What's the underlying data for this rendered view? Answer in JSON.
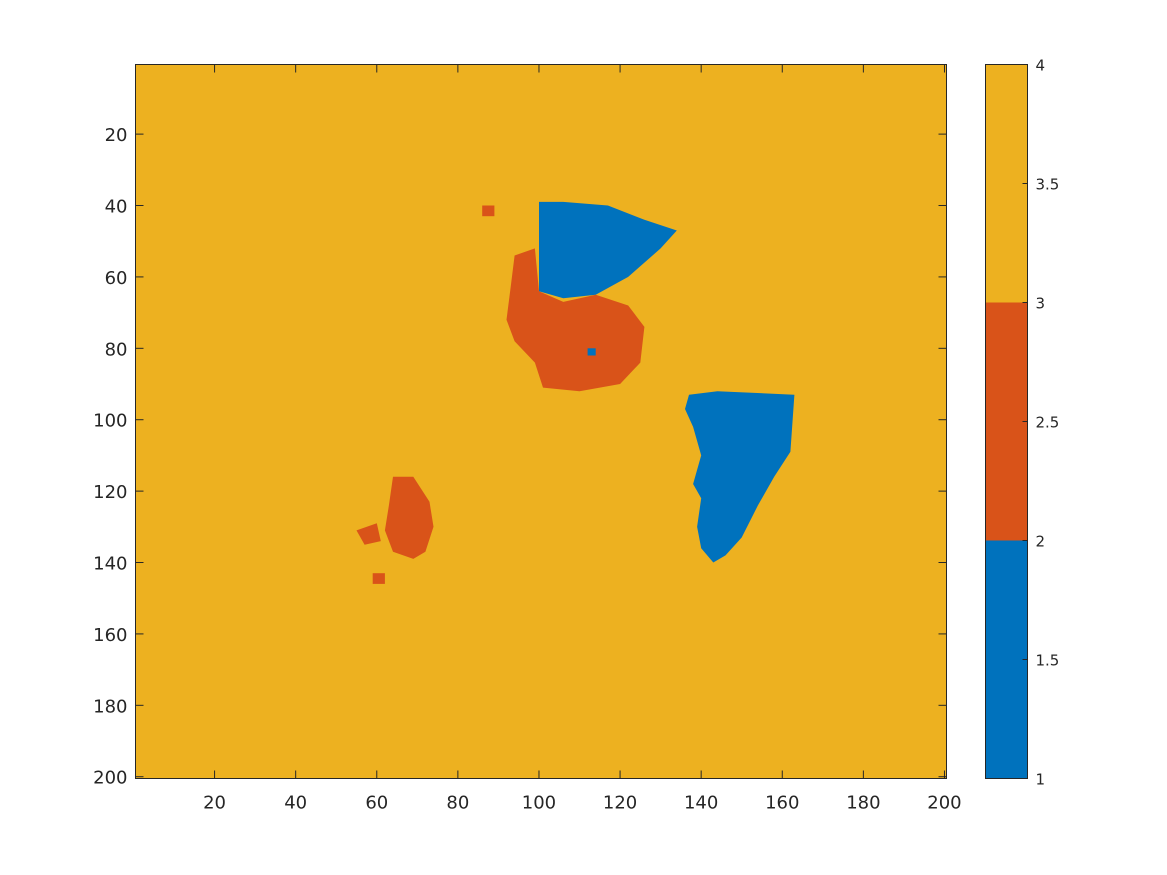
{
  "chart_data": {
    "type": "heatmap",
    "title": "",
    "xlabel": "",
    "ylabel": "",
    "xlim": [
      0.5,
      200.5
    ],
    "ylim": [
      0.5,
      200.5
    ],
    "y_reversed": true,
    "x_ticks": [
      20,
      40,
      60,
      80,
      100,
      120,
      140,
      160,
      180,
      200
    ],
    "y_ticks": [
      20,
      40,
      60,
      80,
      100,
      120,
      140,
      160,
      180,
      200
    ],
    "x_tick_labels": [
      "20",
      "40",
      "60",
      "80",
      "100",
      "120",
      "140",
      "160",
      "180",
      "200"
    ],
    "y_tick_labels": [
      "20",
      "40",
      "60",
      "80",
      "100",
      "120",
      "140",
      "160",
      "180",
      "200"
    ],
    "background_value": 4,
    "class_colors": {
      "1": "#0072BD",
      "3": "#D95319",
      "4": "#EDB120"
    },
    "regions": [
      {
        "value": 1,
        "approx_outline_xy": [
          [
            100,
            39
          ],
          [
            106,
            39
          ],
          [
            117,
            40
          ],
          [
            126,
            44
          ],
          [
            134,
            47
          ],
          [
            130,
            52
          ],
          [
            122,
            60
          ],
          [
            114,
            65
          ],
          [
            106,
            66
          ],
          [
            100,
            64
          ]
        ]
      },
      {
        "value": 3,
        "approx_outline_xy": [
          [
            94,
            54
          ],
          [
            99,
            52
          ],
          [
            100,
            64
          ],
          [
            106,
            67
          ],
          [
            114,
            65
          ],
          [
            122,
            68
          ],
          [
            126,
            74
          ],
          [
            125,
            84
          ],
          [
            120,
            90
          ],
          [
            110,
            92
          ],
          [
            101,
            91
          ],
          [
            99,
            84
          ],
          [
            94,
            78
          ],
          [
            92,
            72
          ],
          [
            93,
            63
          ]
        ]
      },
      {
        "value": 3,
        "approx_outline_xy": [
          [
            86,
            40
          ],
          [
            89,
            40
          ],
          [
            89,
            43
          ],
          [
            86,
            43
          ]
        ]
      },
      {
        "value": 1,
        "approx_outline_xy": [
          [
            112,
            80
          ],
          [
            114,
            80
          ],
          [
            114,
            82
          ],
          [
            112,
            82
          ]
        ]
      },
      {
        "value": 1,
        "approx_outline_xy": [
          [
            137,
            93
          ],
          [
            144,
            92
          ],
          [
            163,
            93
          ],
          [
            162,
            109
          ],
          [
            158,
            116
          ],
          [
            154,
            124
          ],
          [
            150,
            133
          ],
          [
            146,
            138
          ],
          [
            143,
            140
          ],
          [
            140,
            136
          ],
          [
            139,
            130
          ],
          [
            140,
            122
          ],
          [
            138,
            118
          ],
          [
            140,
            110
          ],
          [
            138,
            102
          ],
          [
            136,
            97
          ]
        ]
      },
      {
        "value": 3,
        "approx_outline_xy": [
          [
            64,
            116
          ],
          [
            69,
            116
          ],
          [
            73,
            123
          ],
          [
            74,
            130
          ],
          [
            72,
            137
          ],
          [
            69,
            139
          ],
          [
            64,
            137
          ],
          [
            62,
            131
          ],
          [
            63,
            124
          ]
        ]
      },
      {
        "value": 3,
        "approx_outline_xy": [
          [
            55,
            131
          ],
          [
            60,
            129
          ],
          [
            61,
            134
          ],
          [
            57,
            135
          ]
        ]
      },
      {
        "value": 3,
        "approx_outline_xy": [
          [
            59,
            143
          ],
          [
            62,
            143
          ],
          [
            62,
            146
          ],
          [
            59,
            146
          ]
        ]
      }
    ],
    "colorbar": {
      "ticks": [
        1,
        1.5,
        2,
        2.5,
        3,
        3.5,
        4
      ],
      "tick_labels": [
        "1",
        "1.5",
        "2",
        "2.5",
        "3",
        "3.5",
        "4"
      ],
      "range": [
        1,
        4
      ],
      "bands": [
        {
          "from": 1,
          "to": 2,
          "color": "#0072BD"
        },
        {
          "from": 2,
          "to": 3,
          "color": "#D95319"
        },
        {
          "from": 3,
          "to": 4,
          "color": "#EDB120"
        }
      ]
    }
  }
}
